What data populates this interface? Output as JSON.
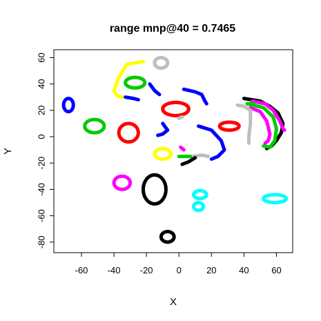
{
  "chart_data": {
    "type": "scatter",
    "title": "range mnp@40 = 0.7465",
    "xlabel": "X",
    "ylabel": "Y",
    "xlim": [
      -77,
      70
    ],
    "ylim": [
      -88,
      66
    ],
    "xticks": [
      "-60",
      "-40",
      "-20",
      "0",
      "20",
      "40",
      "60"
    ],
    "yticks": [
      "-80",
      "-60",
      "-40",
      "-20",
      "0",
      "20",
      "40",
      "60"
    ],
    "grid": false,
    "legend": "none",
    "clusters": [
      {
        "shape": "ring",
        "color": "#0000ff",
        "cx": -68,
        "cy": 24,
        "rx": 3,
        "ry": 5
      },
      {
        "shape": "ring",
        "color": "#00cc00",
        "cx": -52,
        "cy": 8,
        "rx": 6,
        "ry": 5
      },
      {
        "shape": "ring",
        "color": "#ff00ff",
        "cx": -35,
        "cy": -35,
        "rx": 5,
        "ry": 5
      },
      {
        "shape": "ring",
        "color": "#ff0000",
        "cx": -31,
        "cy": 3,
        "rx": 6,
        "ry": 7
      },
      {
        "shape": "ring",
        "color": "#000000",
        "cx": -15,
        "cy": -40,
        "rx": 7,
        "ry": 11
      },
      {
        "shape": "ring",
        "color": "#000000",
        "cx": -7,
        "cy": -76,
        "rx": 4,
        "ry": 4
      },
      {
        "shape": "ring",
        "color": "#ffff00",
        "cx": -10,
        "cy": -13,
        "rx": 5,
        "ry": 4
      },
      {
        "shape": "ring",
        "color": "#00ffff",
        "cx": 13,
        "cy": -44,
        "rx": 4,
        "ry": 3
      },
      {
        "shape": "ring",
        "color": "#00ffff",
        "cx": 12,
        "cy": -53,
        "rx": 3,
        "ry": 3
      },
      {
        "shape": "ring",
        "color": "#00ffff",
        "cx": 59,
        "cy": -47,
        "rx": 7,
        "ry": 3
      },
      {
        "shape": "ring",
        "color": "#00cc00",
        "cx": -27,
        "cy": 41,
        "rx": 6,
        "ry": 4
      },
      {
        "shape": "ring",
        "color": "#bebebe",
        "cx": -11,
        "cy": 56,
        "rx": 4,
        "ry": 4
      },
      {
        "shape": "ring",
        "color": "#ff0000",
        "cx": -2,
        "cy": 21,
        "rx": 8,
        "ry": 5
      },
      {
        "shape": "ring",
        "color": "#ff0000",
        "cx": 31,
        "cy": 8,
        "rx": 6,
        "ry": 3
      },
      {
        "shape": "path",
        "color": "#ffff00",
        "points": [
          [
            -22,
            57
          ],
          [
            -32,
            55
          ],
          [
            -37,
            45
          ],
          [
            -40,
            35
          ],
          [
            -38,
            31
          ],
          [
            -35,
            30
          ]
        ]
      },
      {
        "shape": "path",
        "color": "#0000ff",
        "points": [
          [
            -33,
            30
          ],
          [
            -28,
            29
          ],
          [
            -25,
            28
          ]
        ]
      },
      {
        "shape": "path",
        "color": "#0000ff",
        "points": [
          [
            -18,
            40
          ],
          [
            -15,
            35
          ],
          [
            -12,
            32
          ]
        ]
      },
      {
        "shape": "path",
        "color": "#0000ff",
        "points": [
          [
            3,
            36
          ],
          [
            10,
            34
          ],
          [
            14,
            32
          ],
          [
            16,
            27
          ],
          [
            17,
            25
          ]
        ]
      },
      {
        "shape": "path",
        "color": "#0000ff",
        "points": [
          [
            -10,
            10
          ],
          [
            -7,
            5
          ],
          [
            -10,
            2
          ],
          [
            -13,
            1
          ]
        ]
      },
      {
        "shape": "path",
        "color": "#0000ff",
        "points": [
          [
            12,
            8
          ],
          [
            20,
            5
          ],
          [
            26,
            -3
          ],
          [
            28,
            -10
          ],
          [
            24,
            -15
          ],
          [
            20,
            -17
          ]
        ]
      },
      {
        "shape": "path",
        "color": "#bebebe",
        "points": [
          [
            8,
            -15
          ],
          [
            14,
            -14
          ],
          [
            18,
            -15
          ]
        ]
      },
      {
        "shape": "path",
        "color": "#00cc00",
        "points": [
          [
            0,
            -15
          ],
          [
            3,
            -15
          ],
          [
            7,
            -15
          ]
        ]
      },
      {
        "shape": "path",
        "color": "#ff00ff",
        "points": [
          [
            1,
            -8
          ],
          [
            3,
            -10
          ]
        ]
      },
      {
        "shape": "path",
        "color": "#000000",
        "points": [
          [
            2,
            -21
          ],
          [
            6,
            -19
          ],
          [
            10,
            -16
          ]
        ]
      },
      {
        "shape": "path",
        "color": "#bebebe",
        "points": [
          [
            0,
            14
          ],
          [
            2,
            15
          ]
        ]
      },
      {
        "shape": "path",
        "color": "#000000",
        "points": [
          [
            40,
            29
          ],
          [
            50,
            27
          ],
          [
            56,
            23
          ],
          [
            61,
            18
          ],
          [
            64,
            10
          ],
          [
            63,
            3
          ],
          [
            60,
            -3
          ],
          [
            57,
            -7
          ],
          [
            54,
            -9
          ]
        ]
      },
      {
        "shape": "path",
        "color": "#ff00ff",
        "points": [
          [
            45,
            27
          ],
          [
            53,
            25
          ],
          [
            58,
            20
          ],
          [
            62,
            12
          ],
          [
            64,
            6
          ],
          [
            65,
            5
          ]
        ]
      },
      {
        "shape": "path",
        "color": "#ff00ff",
        "points": [
          [
            44,
            22
          ],
          [
            50,
            19
          ],
          [
            54,
            12
          ],
          [
            56,
            2
          ],
          [
            55,
            -3
          ],
          [
            53,
            -5
          ]
        ]
      },
      {
        "shape": "path",
        "color": "#00cc00",
        "points": [
          [
            42,
            25
          ],
          [
            52,
            22
          ],
          [
            58,
            15
          ],
          [
            60,
            6
          ],
          [
            59,
            -3
          ],
          [
            56,
            -8
          ],
          [
            52,
            -7
          ]
        ]
      },
      {
        "shape": "path",
        "color": "#bebebe",
        "points": [
          [
            36,
            24
          ],
          [
            40,
            23
          ],
          [
            44,
            20
          ],
          [
            44,
            10
          ],
          [
            43,
            0
          ],
          [
            43,
            -5
          ]
        ]
      },
      {
        "shape": "path",
        "color": "#00cc00",
        "points": [
          [
            42,
            25
          ],
          [
            46,
            25
          ]
        ]
      }
    ]
  }
}
